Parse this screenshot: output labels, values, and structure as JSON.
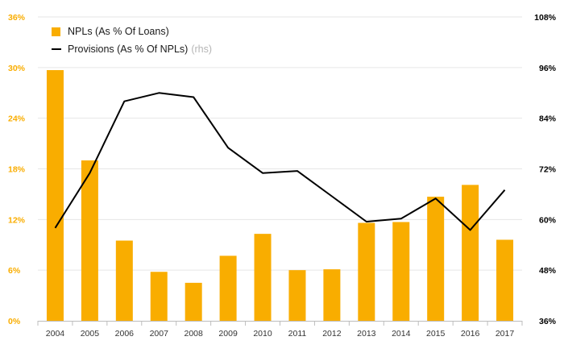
{
  "chart_data": {
    "type": "bar+line",
    "categories": [
      "2004",
      "2005",
      "2006",
      "2007",
      "2008",
      "2009",
      "2010",
      "2011",
      "2012",
      "2013",
      "2014",
      "2015",
      "2016",
      "2017"
    ],
    "series": [
      {
        "name": "NPLs (As % Of Loans)",
        "type": "bar",
        "axis": "left",
        "color": "#F9AD00",
        "values": [
          29.7,
          19.0,
          9.5,
          5.8,
          4.5,
          7.7,
          10.3,
          6.0,
          6.1,
          11.6,
          11.7,
          14.7,
          16.1,
          9.6
        ]
      },
      {
        "name": "Provisions (As % Of NPLs)",
        "name_suffix": "(rhs)",
        "type": "line",
        "axis": "right",
        "color": "#000000",
        "values": [
          58,
          71,
          88,
          90,
          89,
          77,
          71,
          71.5,
          65.5,
          59.5,
          60.2,
          65,
          57.5,
          67
        ]
      }
    ],
    "y_left": {
      "min": 0,
      "max": 36,
      "ticks": [
        0,
        6,
        12,
        18,
        24,
        30,
        36
      ],
      "tick_labels": [
        "0%",
        "6%",
        "12%",
        "18%",
        "24%",
        "30%",
        "36%"
      ],
      "color": "#F9AD00"
    },
    "y_right": {
      "min": 36,
      "max": 108,
      "ticks": [
        36,
        48,
        60,
        72,
        84,
        96,
        108
      ],
      "tick_labels": [
        "36%",
        "48%",
        "60%",
        "72%",
        "84%",
        "96%",
        "108%"
      ],
      "color": "#000000"
    },
    "grid": true,
    "legend_position": "top-left",
    "title": "",
    "xlabel": "",
    "ylabel": ""
  }
}
